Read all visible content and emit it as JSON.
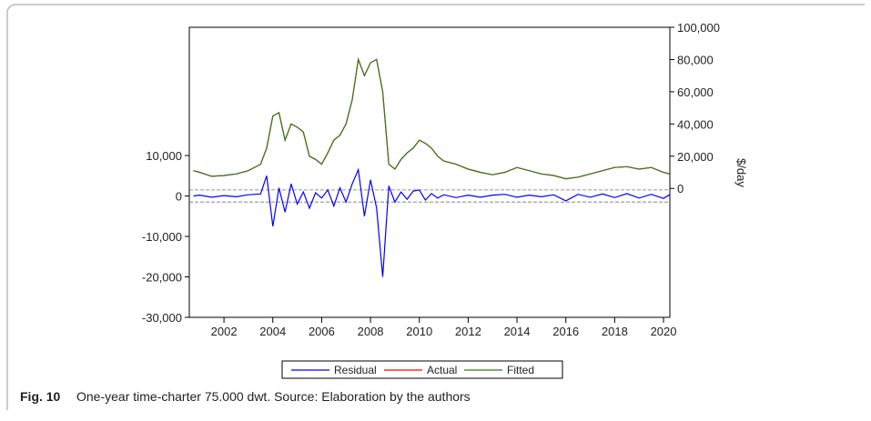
{
  "chart_data": {
    "type": "line",
    "caption_label": "Fig. 10",
    "caption_text": "One-year time-charter 75.000 dwt. Source: Elaboration by the authors",
    "y2_label": "$/day",
    "x": [
      2000.75,
      2001.0,
      2001.5,
      2002.0,
      2002.5,
      2003.0,
      2003.5,
      2003.75,
      2004.0,
      2004.25,
      2004.5,
      2004.75,
      2005.0,
      2005.25,
      2005.5,
      2005.75,
      2006.0,
      2006.25,
      2006.5,
      2006.75,
      2007.0,
      2007.25,
      2007.5,
      2007.75,
      2008.0,
      2008.25,
      2008.5,
      2008.75,
      2009.0,
      2009.25,
      2009.5,
      2009.75,
      2010.0,
      2010.25,
      2010.5,
      2010.75,
      2011.0,
      2011.5,
      2012.0,
      2012.5,
      2013.0,
      2013.5,
      2014.0,
      2014.5,
      2015.0,
      2015.5,
      2016.0,
      2016.5,
      2017.0,
      2017.5,
      2018.0,
      2018.5,
      2019.0,
      2019.5,
      2020.0,
      2020.25
    ],
    "series": [
      {
        "name": "Residual",
        "color": "#0000ff",
        "axis": "y",
        "values": [
          0,
          200,
          -300,
          100,
          -200,
          300,
          500,
          5000,
          -7500,
          2000,
          -4000,
          3000,
          -2000,
          1000,
          -3000,
          800,
          -500,
          1500,
          -2500,
          2000,
          -1500,
          3000,
          6500,
          -5000,
          4000,
          -3000,
          -20000,
          2500,
          -1500,
          1000,
          -800,
          1200,
          1500,
          -1000,
          600,
          -500,
          300,
          -400,
          200,
          -300,
          200,
          400,
          -300,
          200,
          -200,
          300,
          -1200,
          400,
          -300,
          500,
          -400,
          600,
          -500,
          400,
          -600,
          300
        ]
      },
      {
        "name": "Actual",
        "color": "#ff0000",
        "axis": "y2",
        "values": [
          11000,
          10000,
          7500,
          8000,
          9000,
          11000,
          15000,
          25000,
          45000,
          47000,
          30000,
          40000,
          38000,
          35000,
          20000,
          18000,
          15000,
          22000,
          30000,
          33000,
          40000,
          55000,
          80000,
          70000,
          78000,
          80000,
          60000,
          15000,
          12000,
          18000,
          22000,
          25000,
          30000,
          28000,
          25000,
          20000,
          17000,
          15000,
          12000,
          10000,
          8500,
          10000,
          13000,
          11000,
          9000,
          8000,
          6000,
          7000,
          9000,
          11000,
          13000,
          13500,
          12000,
          13000,
          10000,
          9000
        ]
      },
      {
        "name": "Fitted",
        "color": "#2e7d1e",
        "axis": "y2",
        "values": [
          11000,
          10000,
          7500,
          8000,
          9000,
          11000,
          15000,
          25000,
          45000,
          47000,
          30000,
          40000,
          38000,
          35000,
          20000,
          18000,
          15000,
          22000,
          30000,
          33000,
          40000,
          55000,
          80000,
          70000,
          78000,
          80000,
          60000,
          15000,
          12000,
          18000,
          22000,
          25000,
          30000,
          28000,
          25000,
          20000,
          17000,
          15000,
          12000,
          10000,
          8500,
          10000,
          13000,
          11000,
          9000,
          8000,
          6000,
          7000,
          9000,
          11000,
          13000,
          13500,
          12000,
          13000,
          10000,
          9000
        ]
      }
    ],
    "reference_lines": [
      1500,
      -1500
    ],
    "xlim": [
      2000.58,
      2020.26
    ],
    "xticks": [
      2002,
      2004,
      2006,
      2008,
      2010,
      2012,
      2014,
      2016,
      2018,
      2020
    ],
    "ylim": [
      -30000,
      41700
    ],
    "yticks": [
      {
        "value": -30000,
        "label": "-30,000"
      },
      {
        "value": -20000,
        "label": "-20,000"
      },
      {
        "value": -10000,
        "label": "-10,000"
      },
      0,
      {
        "value": 10000,
        "label": "10,000"
      }
    ],
    "y2lim": [
      -80000,
      100000
    ],
    "y2ticks": [
      0,
      {
        "value": 20000,
        "label": "20,000"
      },
      {
        "value": 40000,
        "label": "40,000"
      },
      {
        "value": 60000,
        "label": "60,000"
      },
      {
        "value": 80000,
        "label": "80,000"
      },
      {
        "value": 100000,
        "label": "100,000"
      }
    ],
    "legend": "bottom"
  }
}
